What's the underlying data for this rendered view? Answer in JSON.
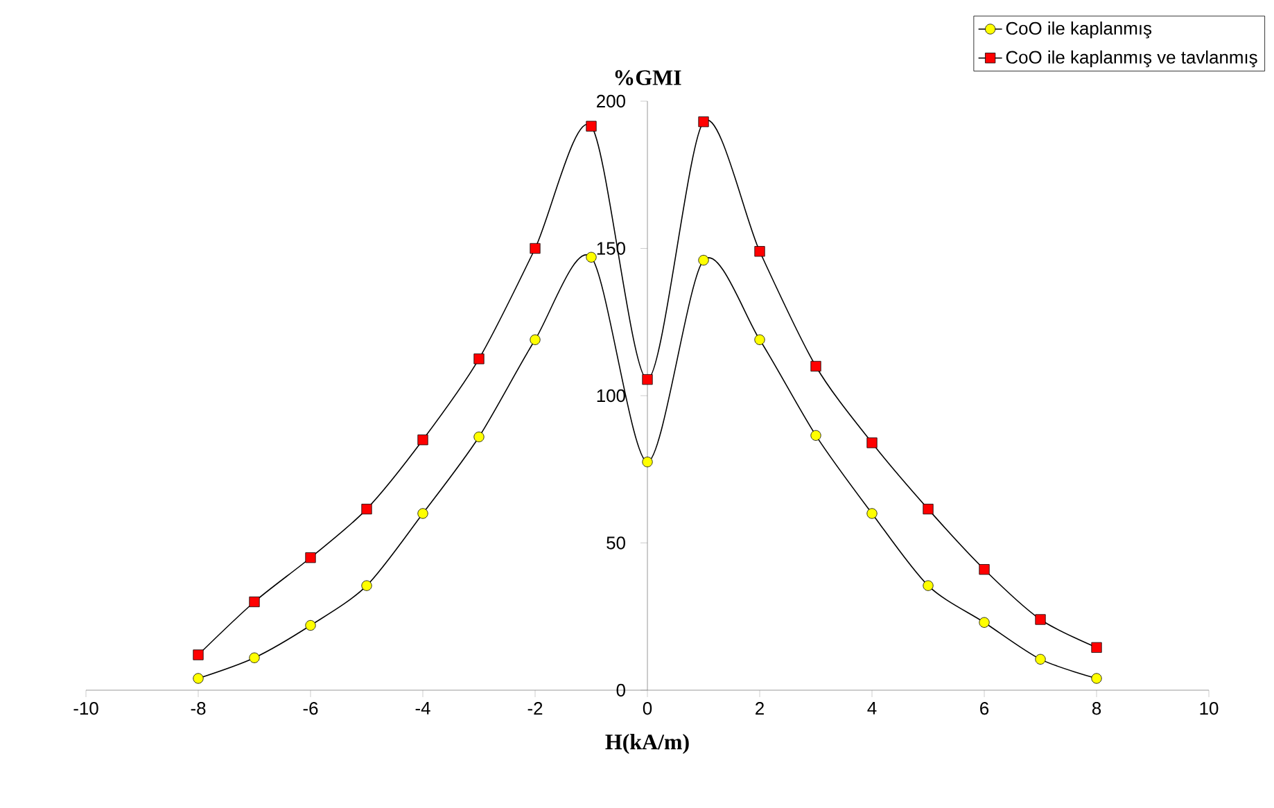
{
  "chart_data": {
    "type": "line",
    "xlabel": "H(kA/m)",
    "ylabel": "%GMI",
    "x": [
      -8,
      -7,
      -6,
      -5,
      -4,
      -3,
      -2,
      -1,
      0,
      1,
      2,
      3,
      4,
      5,
      6,
      7,
      8
    ],
    "series": [
      {
        "name": "CoO ile kaplanmış",
        "color": "#ffff00",
        "marker": "circle",
        "values": [
          4,
          11,
          22,
          35.5,
          60,
          86,
          119,
          147,
          77.5,
          146,
          119,
          86.5,
          60,
          35.5,
          23,
          10.5,
          4
        ]
      },
      {
        "name": "CoO ile kaplanmış ve tavlanmış",
        "color": "#ff0000",
        "marker": "square",
        "values": [
          12,
          30,
          45,
          61.5,
          85,
          112.5,
          150,
          191.5,
          105.5,
          193,
          149,
          110,
          84,
          61.5,
          41,
          24,
          14.5
        ]
      }
    ],
    "xlim": [
      -10,
      10
    ],
    "ylim": [
      0,
      200
    ],
    "xticks": [
      -10,
      -8,
      -6,
      -4,
      -2,
      0,
      2,
      4,
      6,
      8,
      10
    ],
    "yticks": [
      0,
      50,
      100,
      150,
      200
    ],
    "legend": "top right",
    "grid": false,
    "line_style": "solid"
  }
}
